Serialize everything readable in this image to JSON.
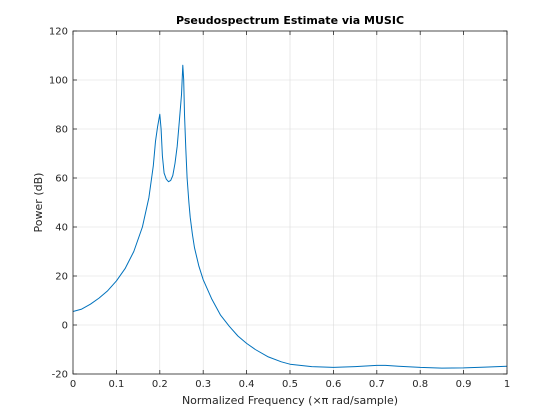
{
  "chart_data": {
    "type": "line",
    "title": "Pseudospectrum Estimate via MUSIC",
    "xlabel": "Normalized Frequency  (×π rad/sample)",
    "ylabel": "Power (dB)",
    "xlim": [
      0,
      1
    ],
    "ylim": [
      -20,
      120
    ],
    "xticks": [
      "0",
      "0.1",
      "0.2",
      "0.3",
      "0.4",
      "0.5",
      "0.6",
      "0.7",
      "0.8",
      "0.9",
      "1"
    ],
    "yticks": [
      "-20",
      "0",
      "20",
      "40",
      "60",
      "80",
      "100",
      "120"
    ],
    "grid": true,
    "line_color": "#0072bd",
    "series": [
      {
        "x": [
          0,
          0.02,
          0.04,
          0.06,
          0.08,
          0.1,
          0.12,
          0.14,
          0.16,
          0.175,
          0.185,
          0.19,
          0.195,
          0.2,
          0.203,
          0.206,
          0.21,
          0.215,
          0.22,
          0.225,
          0.23,
          0.235,
          0.24,
          0.245,
          0.25,
          0.253,
          0.255,
          0.257,
          0.26,
          0.263,
          0.267,
          0.27,
          0.275,
          0.28,
          0.29,
          0.3,
          0.32,
          0.34,
          0.36,
          0.38,
          0.4,
          0.42,
          0.45,
          0.48,
          0.5,
          0.55,
          0.6,
          0.65,
          0.7,
          0.72,
          0.75,
          0.8,
          0.85,
          0.9,
          0.95,
          1.0
        ],
        "y": [
          5.5,
          6.5,
          8.5,
          11,
          14,
          18,
          23,
          30,
          40,
          52,
          65,
          75,
          81,
          86,
          80,
          69,
          62,
          59.5,
          58.5,
          59,
          61,
          66,
          73,
          83,
          94,
          106,
          100,
          86,
          72,
          60,
          50,
          44,
          37,
          31.5,
          24,
          18.5,
          10.5,
          4,
          -0.5,
          -4.5,
          -7.5,
          -10,
          -13,
          -15,
          -16,
          -17,
          -17.3,
          -17,
          -16.5,
          -16.5,
          -16.8,
          -17.3,
          -17.6,
          -17.5,
          -17.2,
          -16.8
        ]
      }
    ]
  }
}
